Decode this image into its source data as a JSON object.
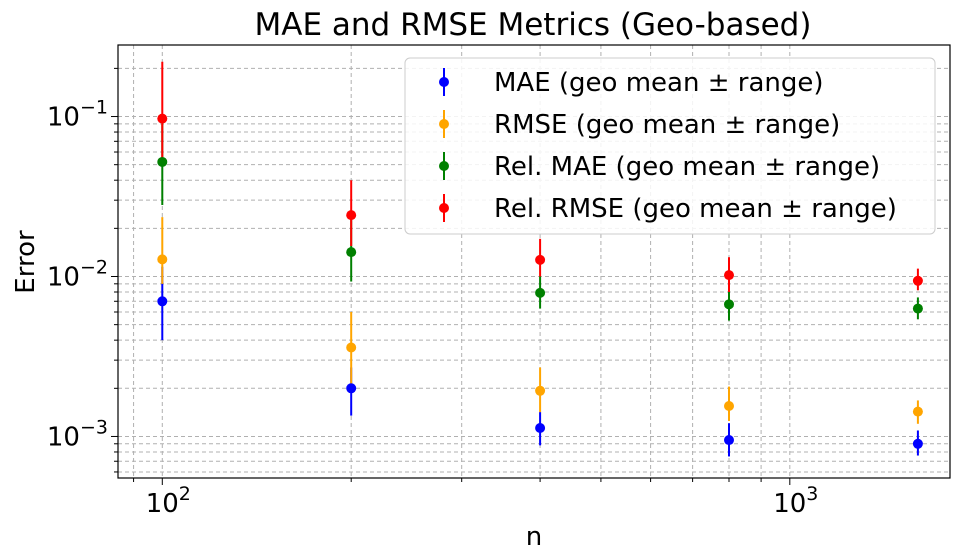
{
  "chart_data": {
    "type": "scatter",
    "title": "MAE and RMSE Metrics (Geo-based)",
    "xlabel": "n",
    "ylabel": "Error",
    "xscale": "log",
    "yscale": "log",
    "xlim": [
      85,
      1800
    ],
    "ylim": [
      0.00055,
      0.28
    ],
    "grid": true,
    "legend_position": "upper right",
    "x_ticks": [
      {
        "value": 100,
        "base": "10",
        "exp": "2"
      },
      {
        "value": 1000,
        "base": "10",
        "exp": "3"
      }
    ],
    "y_ticks": [
      {
        "value": 0.001,
        "base": "10",
        "exp": "−3"
      },
      {
        "value": 0.01,
        "base": "10",
        "exp": "−2"
      },
      {
        "value": 0.1,
        "base": "10",
        "exp": "−1"
      }
    ],
    "x": [
      100,
      200,
      400,
      800,
      1600
    ],
    "series": [
      {
        "name": "MAE (geo mean ± range)",
        "color": "#0000ff",
        "values": [
          0.007,
          0.002,
          0.00113,
          0.00095,
          0.0009
        ],
        "lower": [
          0.004,
          0.00135,
          0.00088,
          0.00075,
          0.00076
        ],
        "upper": [
          0.0115,
          0.0027,
          0.00142,
          0.00121,
          0.00109
        ]
      },
      {
        "name": "RMSE (geo mean ± range)",
        "color": "#ffa500",
        "values": [
          0.0128,
          0.0036,
          0.00193,
          0.00155,
          0.00143
        ],
        "lower": [
          0.009,
          0.002,
          0.00142,
          0.00125,
          0.0012
        ],
        "upper": [
          0.0235,
          0.006,
          0.0027,
          0.00205,
          0.00168
        ]
      },
      {
        "name": "Rel. MAE (geo mean ± range)",
        "color": "#008000",
        "values": [
          0.052,
          0.0142,
          0.0079,
          0.0067,
          0.0063
        ],
        "lower": [
          0.028,
          0.0093,
          0.0063,
          0.0053,
          0.0054
        ],
        "upper": [
          0.09,
          0.023,
          0.01,
          0.0084,
          0.0074
        ]
      },
      {
        "name": "Rel. RMSE (geo mean ± range)",
        "color": "#ff0000",
        "values": [
          0.097,
          0.0242,
          0.0127,
          0.0102,
          0.0094
        ],
        "lower": [
          0.055,
          0.0155,
          0.01,
          0.008,
          0.0082
        ],
        "upper": [
          0.22,
          0.04,
          0.0172,
          0.0132,
          0.0112
        ]
      }
    ]
  }
}
